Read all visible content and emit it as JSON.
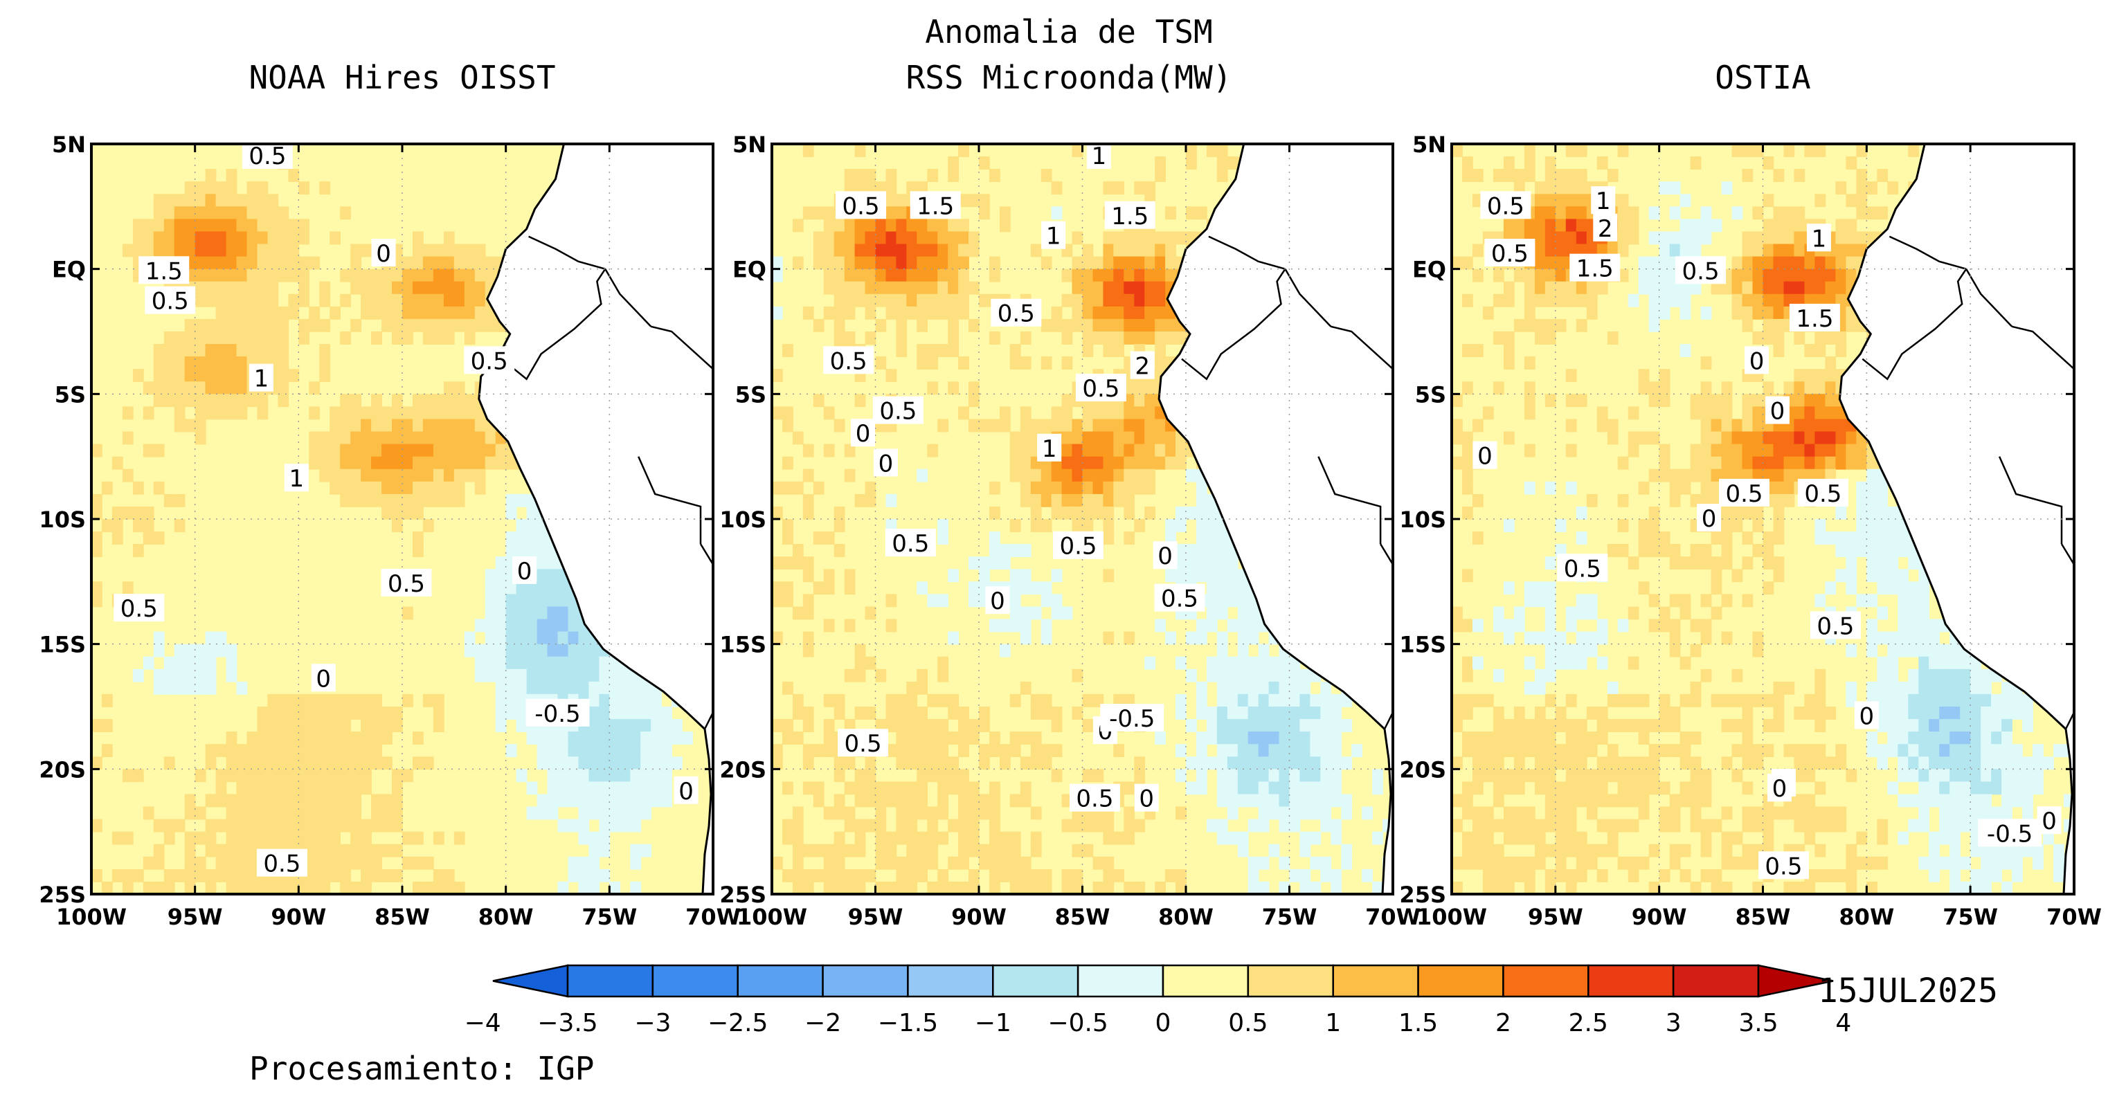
{
  "main_title": {
    "line1": "Anomalia de TSM",
    "line2": "RSS Microonda(MW)"
  },
  "panels": [
    {
      "title": "NOAA Hires OISST",
      "contour_labels": [
        "0.5",
        "1.5",
        "0.5",
        "0",
        "0.5",
        "1",
        "1",
        "0.5",
        "0",
        "0.5",
        "0",
        "-0.5",
        "0",
        "0.5"
      ],
      "warm_cells": [
        {
          "lon": -94.5,
          "lat": 1.0,
          "anom": 2.2
        },
        {
          "lon": -83.0,
          "lat": -0.8,
          "anom": 1.8
        },
        {
          "lon": -94.0,
          "lat": -4.0,
          "anom": 1.3
        },
        {
          "lon": -86.0,
          "lat": -7.5,
          "anom": 1.5
        },
        {
          "lon": -82.0,
          "lat": -7.0,
          "anom": 1.2
        }
      ],
      "cool_cells": [
        {
          "lon": -78.0,
          "lat": -14.5,
          "anom": -0.8
        },
        {
          "lon": -74.5,
          "lat": -19.0,
          "anom": -0.6
        },
        {
          "lon": -95.0,
          "lat": -16.0,
          "anom": -0.3
        }
      ]
    },
    {
      "title": "",
      "contour_labels": [
        "1",
        "0.5",
        "1.5",
        "1",
        "1.5",
        "0.5",
        "0.5",
        "2",
        "0.5",
        "0",
        "0.5",
        "0",
        "1",
        "0.5",
        "0.5",
        "0",
        "0.5",
        "0",
        "0",
        "-0.5",
        "0.5",
        "0",
        "0.5"
      ],
      "warm_cells": [
        {
          "lon": -94.0,
          "lat": 0.8,
          "anom": 2.6
        },
        {
          "lon": -82.5,
          "lat": -1.0,
          "anom": 2.7
        },
        {
          "lon": -85.0,
          "lat": -7.8,
          "anom": 2.0
        },
        {
          "lon": -81.0,
          "lat": -6.0,
          "anom": 1.4
        }
      ],
      "cool_cells": [
        {
          "lon": -76.0,
          "lat": -19.0,
          "anom": -0.7
        },
        {
          "lon": -88.0,
          "lat": -13.0,
          "anom": -0.3
        }
      ]
    },
    {
      "title": "OSTIA",
      "contour_labels": [
        "0.5",
        "1",
        "2",
        "1.5",
        "0.5",
        "1",
        "1.5",
        "0.5",
        "0",
        "0",
        "0",
        "0.5",
        "0.5",
        "0.5",
        "0",
        "0.5",
        "0",
        "0",
        "0",
        "-0.5",
        "0",
        "0.5"
      ],
      "warm_cells": [
        {
          "lon": -94.0,
          "lat": 1.2,
          "anom": 2.5
        },
        {
          "lon": -83.5,
          "lat": -0.5,
          "anom": 2.7
        },
        {
          "lon": -85.0,
          "lat": -7.5,
          "anom": 1.6
        },
        {
          "lon": -82.0,
          "lat": -6.5,
          "anom": 2.2
        }
      ],
      "cool_cells": [
        {
          "lon": -90.0,
          "lat": 0.5,
          "anom": -0.5
        },
        {
          "lon": -76.0,
          "lat": -18.5,
          "anom": -0.7
        },
        {
          "lon": -95.0,
          "lat": -15.0,
          "anom": -0.3
        }
      ]
    }
  ],
  "map_extent": {
    "lon_min": -100,
    "lon_max": -70,
    "lat_min": -25,
    "lat_max": 5
  },
  "y_ticks": [
    "5N",
    "EQ",
    "5S",
    "10S",
    "15S",
    "20S",
    "25S"
  ],
  "x_ticks": [
    "100W",
    "95W",
    "90W",
    "85W",
    "80W",
    "75W",
    "70W"
  ],
  "colorbar": {
    "labels": [
      "−4",
      "−3.5",
      "−3",
      "−2.5",
      "−2",
      "−1.5",
      "−1",
      "−0.5",
      "0",
      "0.5",
      "1",
      "1.5",
      "2",
      "2.5",
      "3",
      "3.5",
      "4"
    ],
    "colors": [
      "#1460d8",
      "#2878e6",
      "#3c8cee",
      "#5aa0f0",
      "#78b4f4",
      "#96c8f6",
      "#b4e6f0",
      "#e0fafa",
      "#fffaaa",
      "#fde080",
      "#fcbe46",
      "#fa9a1e",
      "#f76e14",
      "#eb3c14",
      "#d21e14",
      "#b40000"
    ]
  },
  "date_label": "15JUL2025",
  "credit": "Procesamiento: IGP"
}
